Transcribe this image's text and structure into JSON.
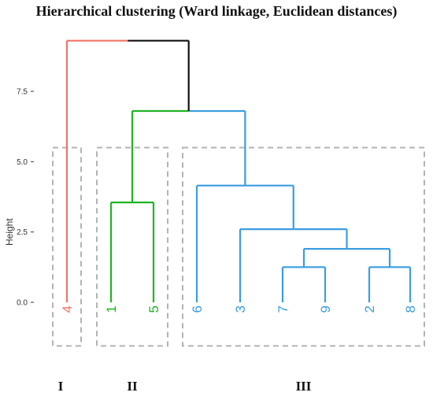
{
  "chart_data": {
    "type": "dendrogram",
    "title": "Hierarchical clustering (Ward linkage, Euclidean distances)",
    "ylabel": "Height",
    "ylim": [
      -1.5,
      9.6
    ],
    "y_ticks": [
      "0.0",
      "2.5",
      "5.0",
      "7.5"
    ],
    "y_tick_values": [
      0.0,
      2.5,
      5.0,
      7.5
    ],
    "leaves": [
      {
        "label": "4",
        "color": "#f07467"
      },
      {
        "label": "1",
        "color": "#1fb424"
      },
      {
        "label": "5",
        "color": "#1fb424"
      },
      {
        "label": "6",
        "color": "#3a9ee0"
      },
      {
        "label": "3",
        "color": "#3a9ee0"
      },
      {
        "label": "7",
        "color": "#3a9ee0"
      },
      {
        "label": "9",
        "color": "#3a9ee0"
      },
      {
        "label": "2",
        "color": "#3a9ee0"
      },
      {
        "label": "8",
        "color": "#3a9ee0"
      }
    ],
    "merges": [
      {
        "left": [
          7
        ],
        "right": [
          8
        ],
        "height": 1.25,
        "color": "#3a9ee0"
      },
      {
        "left": [
          5
        ],
        "right": [
          6
        ],
        "height": 1.25,
        "color": "#3a9ee0"
      },
      {
        "left": [
          5,
          6
        ],
        "right": [
          7,
          8
        ],
        "height": 1.9,
        "color": "#3a9ee0"
      },
      {
        "left": [
          4
        ],
        "right": [
          5,
          6,
          7,
          8
        ],
        "height": 2.6,
        "color": "#3a9ee0"
      },
      {
        "left": [
          1
        ],
        "right": [
          2
        ],
        "height": 3.55,
        "color": "#1fb424"
      },
      {
        "left": [
          3
        ],
        "right": [
          4,
          5,
          6,
          7,
          8
        ],
        "height": 4.15,
        "color": "#3a9ee0"
      },
      {
        "left": [
          1,
          2
        ],
        "right": [
          3,
          4,
          5,
          6,
          7,
          8
        ],
        "height": 6.8,
        "color": "#1fb424",
        "right_color": "#3a9ee0"
      },
      {
        "left": [
          0
        ],
        "right": [
          1,
          2,
          3,
          4,
          5,
          6,
          7,
          8
        ],
        "height": 9.3,
        "color": "#f07467",
        "right_color": "#111111"
      }
    ],
    "clusters": [
      {
        "label": "I",
        "leaves": [
          0
        ]
      },
      {
        "label": "II",
        "leaves": [
          1,
          2
        ]
      },
      {
        "label": "III",
        "leaves": [
          3,
          4,
          5,
          6,
          7,
          8
        ]
      }
    ],
    "box_top_height": 5.5,
    "box_bottom_height": -1.55
  }
}
